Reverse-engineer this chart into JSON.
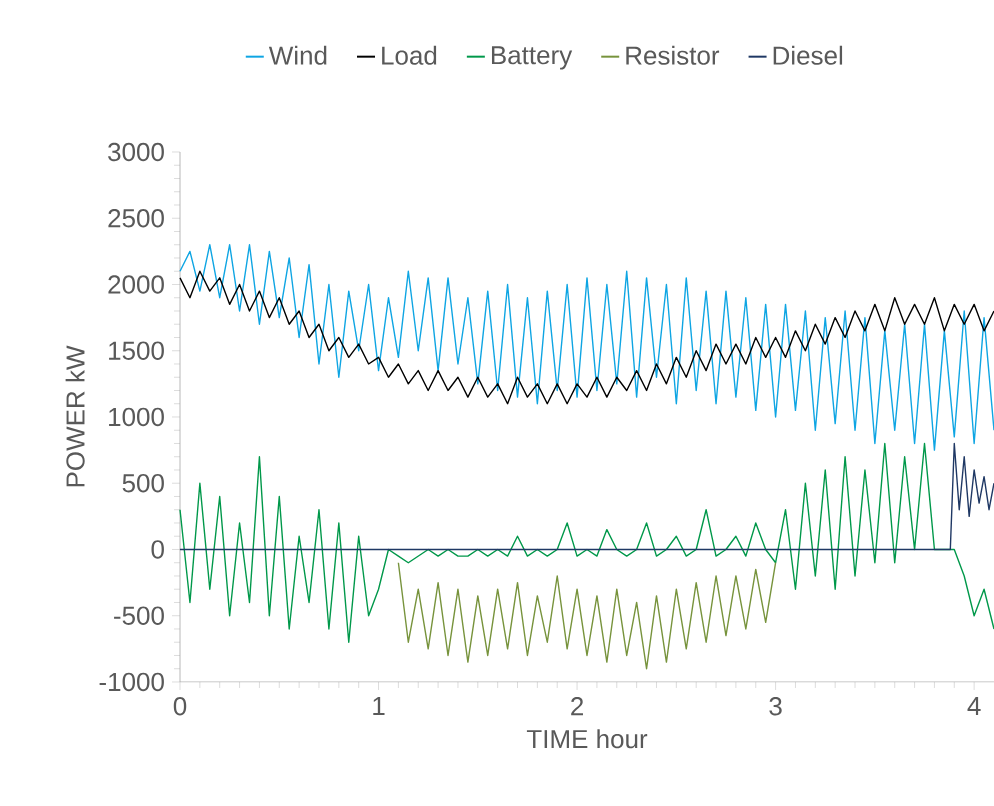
{
  "chart_data": {
    "type": "line",
    "xlabel": "TIME hour",
    "ylabel": "POWER kW",
    "legend": "top",
    "grid": false,
    "line_style": "solid",
    "marker": "none",
    "xlim": [
      0,
      4.1
    ],
    "xticks": [
      0,
      1,
      2,
      3,
      4
    ],
    "ylim": [
      -1000,
      3000
    ],
    "yticks": [
      -1000,
      -500,
      0,
      500,
      1000,
      1500,
      2000,
      2500,
      3000
    ],
    "x": [
      0,
      0.05,
      0.1,
      0.15,
      0.2,
      0.25,
      0.3,
      0.35,
      0.4,
      0.45,
      0.5,
      0.55,
      0.6,
      0.65,
      0.7,
      0.75,
      0.8,
      0.85,
      0.9,
      0.95,
      1.0,
      1.05,
      1.1,
      1.15,
      1.2,
      1.25,
      1.3,
      1.35,
      1.4,
      1.45,
      1.5,
      1.55,
      1.6,
      1.65,
      1.7,
      1.75,
      1.8,
      1.85,
      1.9,
      1.95,
      2.0,
      2.05,
      2.1,
      2.15,
      2.2,
      2.25,
      2.3,
      2.35,
      2.4,
      2.45,
      2.5,
      2.55,
      2.6,
      2.65,
      2.7,
      2.75,
      2.8,
      2.85,
      2.9,
      2.95,
      3.0,
      3.05,
      3.1,
      3.15,
      3.2,
      3.25,
      3.3,
      3.35,
      3.4,
      3.45,
      3.5,
      3.55,
      3.6,
      3.65,
      3.7,
      3.75,
      3.8,
      3.85,
      3.9,
      3.95,
      4.0,
      4.05,
      4.1
    ],
    "series": [
      {
        "name": "Wind",
        "color": "#0ea5e3",
        "values": [
          2100,
          2250,
          1950,
          2300,
          1900,
          2300,
          1800,
          2300,
          1700,
          2250,
          1750,
          2200,
          1600,
          2150,
          1400,
          2000,
          1300,
          1950,
          1500,
          2000,
          1350,
          1900,
          1450,
          2100,
          1500,
          2050,
          1350,
          2050,
          1400,
          1900,
          1250,
          1950,
          1200,
          2000,
          1150,
          1900,
          1100,
          1950,
          1200,
          2000,
          1150,
          2050,
          1200,
          2000,
          1250,
          2100,
          1150,
          2050,
          1300,
          2000,
          1100,
          2050,
          1200,
          1950,
          1100,
          1950,
          1150,
          1900,
          1050,
          1850,
          1000,
          1850,
          1050,
          1800,
          900,
          1750,
          950,
          1800,
          900,
          1750,
          800,
          1650,
          900,
          1700,
          800,
          1700,
          750,
          1650,
          850,
          1800,
          800,
          1750,
          900
        ]
      },
      {
        "name": "Load",
        "color": "#000000",
        "values": [
          2050,
          1900,
          2100,
          1950,
          2050,
          1850,
          2000,
          1800,
          1950,
          1750,
          1900,
          1700,
          1800,
          1600,
          1700,
          1500,
          1600,
          1450,
          1550,
          1400,
          1450,
          1300,
          1400,
          1250,
          1350,
          1200,
          1350,
          1200,
          1300,
          1150,
          1300,
          1150,
          1250,
          1100,
          1300,
          1150,
          1250,
          1100,
          1250,
          1100,
          1250,
          1150,
          1300,
          1150,
          1300,
          1200,
          1350,
          1200,
          1400,
          1250,
          1450,
          1300,
          1500,
          1350,
          1550,
          1400,
          1550,
          1400,
          1600,
          1450,
          1600,
          1450,
          1650,
          1500,
          1700,
          1550,
          1750,
          1600,
          1800,
          1650,
          1850,
          1650,
          1900,
          1700,
          1850,
          1700,
          1900,
          1650,
          1850,
          1700,
          1850,
          1650,
          1800
        ]
      },
      {
        "name": "Battery",
        "color": "#00984a",
        "values": [
          300,
          -400,
          500,
          -300,
          400,
          -500,
          200,
          -400,
          700,
          -500,
          400,
          -600,
          100,
          -400,
          300,
          -600,
          200,
          -700,
          100,
          -500,
          -300,
          0,
          -50,
          -100,
          -50,
          0,
          -50,
          0,
          -50,
          -50,
          0,
          -50,
          0,
          -50,
          100,
          -50,
          0,
          -50,
          0,
          200,
          -50,
          0,
          -50,
          150,
          0,
          -50,
          0,
          200,
          -50,
          0,
          100,
          -50,
          0,
          300,
          -50,
          0,
          100,
          -50,
          200,
          0,
          -100,
          300,
          -300,
          500,
          -200,
          600,
          -300,
          700,
          -200,
          600,
          -100,
          800,
          -100,
          700,
          0,
          800,
          0,
          0,
          0,
          -200,
          -500,
          -300,
          -600
        ]
      },
      {
        "name": "Resistor",
        "color": "#77933c",
        "x": [
          1.1,
          1.15,
          1.2,
          1.25,
          1.3,
          1.35,
          1.4,
          1.45,
          1.5,
          1.55,
          1.6,
          1.65,
          1.7,
          1.75,
          1.8,
          1.85,
          1.9,
          1.95,
          2.0,
          2.05,
          2.1,
          2.15,
          2.2,
          2.25,
          2.3,
          2.35,
          2.4,
          2.45,
          2.5,
          2.55,
          2.6,
          2.65,
          2.7,
          2.75,
          2.8,
          2.85,
          2.9,
          2.95,
          3.0
        ],
        "values": [
          -100,
          -700,
          -300,
          -750,
          -250,
          -800,
          -300,
          -850,
          -350,
          -800,
          -300,
          -750,
          -250,
          -800,
          -350,
          -700,
          -200,
          -750,
          -300,
          -800,
          -350,
          -850,
          -300,
          -800,
          -400,
          -900,
          -350,
          -850,
          -300,
          -750,
          -250,
          -700,
          -200,
          -650,
          -200,
          -600,
          -150,
          -550,
          -100
        ]
      },
      {
        "name": "Diesel",
        "color": "#1f3864",
        "x": [
          0,
          3.88,
          3.9,
          3.925,
          3.95,
          3.975,
          4.0,
          4.025,
          4.05,
          4.075,
          4.1
        ],
        "values": [
          0,
          0,
          800,
          300,
          700,
          250,
          600,
          350,
          550,
          300,
          500
        ]
      }
    ]
  }
}
